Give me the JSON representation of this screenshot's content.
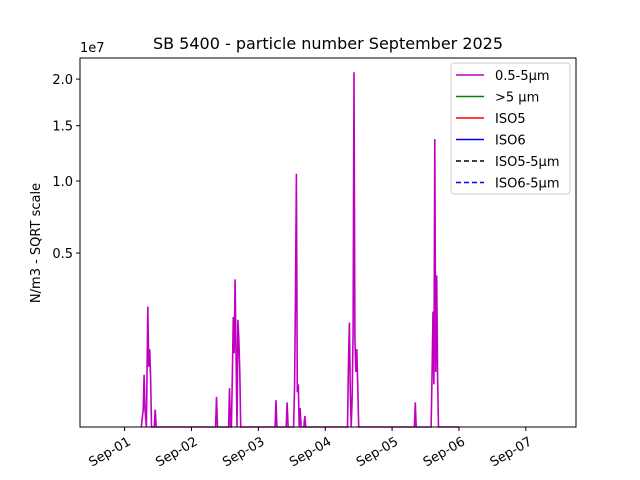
{
  "chart_data": {
    "type": "line",
    "title": "SB 5400 - particle number September 2025",
    "xlabel": "",
    "ylabel": "N/m3 - SQRT scale",
    "y_scale": "sqrt",
    "y_offset_label": "1e7",
    "ylim": [
      0,
      22500000
    ],
    "xlim": [
      "2025-08-31T08:00",
      "2025-09-07T18:00"
    ],
    "x_ticks": [
      {
        "value": "2025-09-01",
        "label": "Sep-01"
      },
      {
        "value": "2025-09-02",
        "label": "Sep-02"
      },
      {
        "value": "2025-09-03",
        "label": "Sep-03"
      },
      {
        "value": "2025-09-04",
        "label": "Sep-04"
      },
      {
        "value": "2025-09-05",
        "label": "Sep-05"
      },
      {
        "value": "2025-09-06",
        "label": "Sep-06"
      },
      {
        "value": "2025-09-07",
        "label": "Sep-07"
      }
    ],
    "y_ticks": [
      {
        "value": 5000000,
        "label": "0.5"
      },
      {
        "value": 10000000,
        "label": "1.0"
      },
      {
        "value": 15000000,
        "label": "1.5"
      },
      {
        "value": 20000000,
        "label": "2.0"
      }
    ],
    "grid": false,
    "legend_position": "top-right",
    "series": [
      {
        "name": "0.5-5µm",
        "color": "#bf00bf",
        "dash": "solid",
        "points": [
          [
            "2025-09-01T06:00",
            0
          ],
          [
            "2025-09-01T06:40",
            50000
          ],
          [
            "2025-09-01T07:00",
            450000
          ],
          [
            "2025-09-01T07:20",
            50000
          ],
          [
            "2025-09-01T07:50",
            0
          ],
          [
            "2025-09-01T08:20",
            2400000
          ],
          [
            "2025-09-01T08:40",
            600000
          ],
          [
            "2025-09-01T09:00",
            1000000
          ],
          [
            "2025-09-01T09:20",
            400000
          ],
          [
            "2025-09-01T09:40",
            0
          ],
          [
            "2025-09-01T10:40",
            0
          ],
          [
            "2025-09-01T11:00",
            50000
          ],
          [
            "2025-09-01T11:20",
            0
          ],
          [
            "2025-09-01T16:00",
            0
          ],
          [
            "2025-09-02T00:00",
            0
          ],
          [
            "2025-09-02T08:00",
            0
          ],
          [
            "2025-09-02T08:40",
            0
          ],
          [
            "2025-09-02T09:00",
            150000
          ],
          [
            "2025-09-02T09:20",
            0
          ],
          [
            "2025-09-02T13:20",
            0
          ],
          [
            "2025-09-02T13:40",
            250000
          ],
          [
            "2025-09-02T14:00",
            0
          ],
          [
            "2025-09-02T14:20",
            0
          ],
          [
            "2025-09-02T14:40",
            400000
          ],
          [
            "2025-09-02T15:00",
            2000000
          ],
          [
            "2025-09-02T15:20",
            900000
          ],
          [
            "2025-09-02T15:40",
            3600000
          ],
          [
            "2025-09-02T16:00",
            1000000
          ],
          [
            "2025-09-02T16:20",
            0
          ],
          [
            "2025-09-02T16:40",
            1900000
          ],
          [
            "2025-09-02T17:00",
            1300000
          ],
          [
            "2025-09-02T17:20",
            500000
          ],
          [
            "2025-09-02T17:40",
            0
          ],
          [
            "2025-09-03T00:00",
            0
          ],
          [
            "2025-09-03T06:00",
            0
          ],
          [
            "2025-09-03T06:20",
            120000
          ],
          [
            "2025-09-03T06:40",
            0
          ],
          [
            "2025-09-03T10:00",
            0
          ],
          [
            "2025-09-03T10:20",
            100000
          ],
          [
            "2025-09-03T10:40",
            0
          ],
          [
            "2025-09-03T12:40",
            0
          ],
          [
            "2025-09-03T13:00",
            300000
          ],
          [
            "2025-09-03T13:20",
            3000000
          ],
          [
            "2025-09-03T13:40",
            10600000
          ],
          [
            "2025-09-03T14:00",
            200000
          ],
          [
            "2025-09-03T14:20",
            300000
          ],
          [
            "2025-09-03T14:40",
            0
          ],
          [
            "2025-09-03T15:00",
            60000
          ],
          [
            "2025-09-03T15:20",
            0
          ],
          [
            "2025-09-03T16:20",
            0
          ],
          [
            "2025-09-03T16:40",
            20000
          ],
          [
            "2025-09-03T17:00",
            0
          ],
          [
            "2025-09-04T00:00",
            0
          ],
          [
            "2025-09-04T08:00",
            0
          ],
          [
            "2025-09-04T08:20",
            600000
          ],
          [
            "2025-09-04T08:40",
            1800000
          ],
          [
            "2025-09-04T09:00",
            200000
          ],
          [
            "2025-09-04T09:20",
            0
          ],
          [
            "2025-09-04T09:40",
            120000
          ],
          [
            "2025-09-04T10:00",
            1500000
          ],
          [
            "2025-09-04T10:20",
            20800000
          ],
          [
            "2025-09-04T10:40",
            1300000
          ],
          [
            "2025-09-04T11:00",
            500000
          ],
          [
            "2025-09-04T11:20",
            1000000
          ],
          [
            "2025-09-04T11:40",
            300000
          ],
          [
            "2025-09-04T12:00",
            0
          ],
          [
            "2025-09-05T00:00",
            0
          ],
          [
            "2025-09-05T08:00",
            0
          ],
          [
            "2025-09-05T08:20",
            100000
          ],
          [
            "2025-09-05T08:40",
            0
          ],
          [
            "2025-09-05T14:00",
            0
          ],
          [
            "2025-09-05T14:20",
            400000
          ],
          [
            "2025-09-05T14:40",
            2200000
          ],
          [
            "2025-09-05T15:00",
            300000
          ],
          [
            "2025-09-05T15:20",
            13700000
          ],
          [
            "2025-09-05T15:40",
            500000
          ],
          [
            "2025-09-05T16:00",
            3800000
          ],
          [
            "2025-09-05T16:20",
            400000
          ],
          [
            "2025-09-05T16:40",
            0
          ],
          [
            "2025-09-06T00:00",
            0
          ]
        ]
      },
      {
        "name": ">5 µm",
        "color": "#008000",
        "dash": "solid",
        "points": []
      },
      {
        "name": "ISO5",
        "color": "#ff0000",
        "dash": "solid",
        "points": []
      },
      {
        "name": "ISO6",
        "color": "#0000ff",
        "dash": "solid",
        "points": []
      },
      {
        "name": "ISO5-5µm",
        "color": "#000000",
        "dash": "dashed",
        "points": []
      },
      {
        "name": "ISO6-5µm",
        "color": "#0000ff",
        "dash": "dashed",
        "points": []
      }
    ]
  }
}
